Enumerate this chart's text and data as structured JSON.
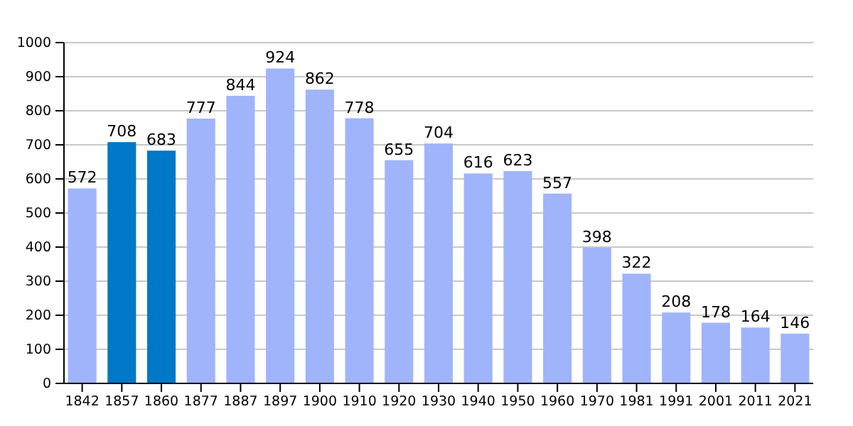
{
  "chart_data": {
    "type": "bar",
    "categories": [
      "1842",
      "1857",
      "1860",
      "1877",
      "1887",
      "1897",
      "1900",
      "1910",
      "1920",
      "1930",
      "1940",
      "1950",
      "1960",
      "1970",
      "1981",
      "1991",
      "2001",
      "2011",
      "2021"
    ],
    "values": [
      572,
      708,
      683,
      777,
      844,
      924,
      862,
      778,
      655,
      704,
      616,
      623,
      557,
      398,
      322,
      208,
      178,
      164,
      146
    ],
    "colors": [
      "#a0b4fc",
      "#0078c8",
      "#0078c8",
      "#a0b4fc",
      "#a0b4fc",
      "#a0b4fc",
      "#a0b4fc",
      "#a0b4fc",
      "#a0b4fc",
      "#a0b4fc",
      "#a0b4fc",
      "#a0b4fc",
      "#a0b4fc",
      "#a0b4fc",
      "#a0b4fc",
      "#a0b4fc",
      "#a0b4fc",
      "#a0b4fc",
      "#a0b4fc"
    ],
    "ylim": [
      0,
      1000
    ],
    "yticks": [
      0,
      100,
      200,
      300,
      400,
      500,
      600,
      700,
      800,
      900,
      1000
    ],
    "grid": "y",
    "data_labels": true
  }
}
